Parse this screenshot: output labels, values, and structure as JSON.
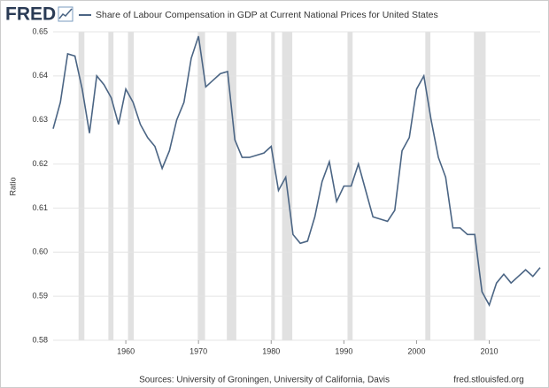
{
  "brand": "FRED",
  "chart_data": {
    "type": "line",
    "title": "Share of Labour Compensation in GDP at Current National Prices for United States",
    "y_label": "Ratio",
    "source": "Sources: University of Groningen, University of California, Davis",
    "site": "fred.stlouisfed.org",
    "x": [
      1950,
      1951,
      1952,
      1953,
      1954,
      1955,
      1956,
      1957,
      1958,
      1959,
      1960,
      1961,
      1962,
      1963,
      1964,
      1965,
      1966,
      1967,
      1968,
      1969,
      1970,
      1971,
      1972,
      1973,
      1974,
      1975,
      1976,
      1977,
      1978,
      1979,
      1980,
      1981,
      1982,
      1983,
      1984,
      1985,
      1986,
      1987,
      1988,
      1989,
      1990,
      1991,
      1992,
      1993,
      1994,
      1995,
      1996,
      1997,
      1998,
      1999,
      2000,
      2001,
      2002,
      2003,
      2004,
      2005,
      2006,
      2007,
      2008,
      2009,
      2010,
      2011,
      2012,
      2013,
      2014,
      2015,
      2016,
      2017
    ],
    "series": [
      {
        "name": "Share of Labour Compensation in GDP at Current National Prices for United States",
        "color": "#4b6584",
        "values": [
          0.628,
          0.634,
          0.645,
          0.6445,
          0.637,
          0.627,
          0.64,
          0.638,
          0.635,
          0.629,
          0.637,
          0.634,
          0.629,
          0.626,
          0.624,
          0.619,
          0.623,
          0.63,
          0.634,
          0.644,
          0.649,
          0.6375,
          0.639,
          0.6405,
          0.641,
          0.6255,
          0.6215,
          0.6215,
          0.622,
          0.6225,
          0.624,
          0.614,
          0.617,
          0.604,
          0.602,
          0.6025,
          0.608,
          0.616,
          0.6205,
          0.6115,
          0.615,
          0.615,
          0.62,
          0.614,
          0.608,
          0.6075,
          0.607,
          0.6095,
          0.623,
          0.626,
          0.637,
          0.64,
          0.63,
          0.6215,
          0.617,
          0.6055,
          0.6055,
          0.604,
          0.604,
          0.591,
          0.588,
          0.593,
          0.595,
          0.593,
          0.5945,
          0.596,
          0.5945,
          0.5965
        ]
      }
    ],
    "recessions": [
      [
        1953.5,
        1954.3
      ],
      [
        1957.6,
        1958.3
      ],
      [
        1960.3,
        1961.1
      ],
      [
        1969.9,
        1970.9
      ],
      [
        1973.9,
        1975.2
      ],
      [
        1980.0,
        1980.5
      ],
      [
        1981.5,
        1982.9
      ],
      [
        1990.5,
        1991.2
      ],
      [
        2001.2,
        2001.9
      ],
      [
        2007.9,
        2009.5
      ]
    ],
    "recession_color": "#e1e1e1",
    "xlim": [
      1950,
      2017
    ],
    "xticks": [
      1960,
      1970,
      1980,
      1990,
      2000,
      2010
    ],
    "ylim": [
      0.58,
      0.65
    ],
    "yticks": [
      0.58,
      0.59,
      {
        "value": 0.6,
        "label": "0.60"
      },
      0.61,
      0.62,
      0.63,
      0.64,
      0.65
    ],
    "grid": true
  }
}
